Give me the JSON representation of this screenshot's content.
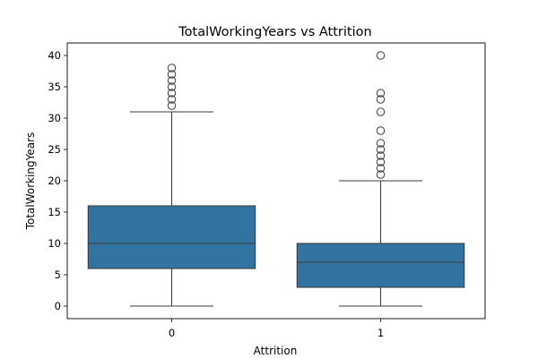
{
  "chart_data": {
    "type": "boxplot",
    "title": "TotalWorkingYears vs Attrition",
    "xlabel": "Attrition",
    "ylabel": "TotalWorkingYears",
    "categories": [
      "0",
      "1"
    ],
    "ylim": [
      -2,
      42
    ],
    "yticks": [
      0,
      5,
      10,
      15,
      20,
      25,
      30,
      35,
      40
    ],
    "box_color": "#3274a1",
    "line_color": "#3d3d3d",
    "boxes": [
      {
        "category": "0",
        "whisker_low": 0,
        "q1": 6,
        "median": 10,
        "q3": 16,
        "whisker_high": 31,
        "outliers": [
          32,
          33,
          34,
          35,
          36,
          37,
          38
        ]
      },
      {
        "category": "1",
        "whisker_low": 0,
        "q1": 3,
        "median": 7,
        "q3": 10,
        "whisker_high": 20,
        "outliers": [
          21,
          22,
          23,
          24,
          25,
          26,
          28,
          31,
          33,
          34,
          40
        ]
      }
    ]
  }
}
